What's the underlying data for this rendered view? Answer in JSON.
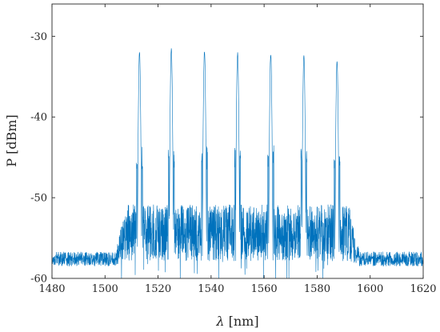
{
  "chart_data": {
    "type": "line",
    "title": "",
    "xlabel": "λ [nm]",
    "ylabel": "P [dBm]",
    "xlim": [
      1480,
      1620
    ],
    "ylim": [
      -60,
      -26
    ],
    "xticks": [
      1480,
      1500,
      1520,
      1540,
      1560,
      1580,
      1600,
      1620
    ],
    "yticks": [
      -60,
      -50,
      -40,
      -30
    ],
    "grid": false,
    "legend": "none",
    "line_color": "#0072BD",
    "noise_floor_dbm": -57.5,
    "peak_region_noise_floor_dbm": -54,
    "peak_region_nm": [
      1508,
      1592
    ],
    "series": [
      {
        "x": [
          1513,
          1525,
          1537.5,
          1550,
          1562.5,
          1575,
          1587.5
        ],
        "values": [
          -31,
          -30.6,
          -30.8,
          -31.1,
          -31.2,
          -31.5,
          -32.1
        ]
      }
    ]
  },
  "xtick_labels": [
    "1480",
    "1500",
    "1520",
    "1540",
    "1560",
    "1580",
    "1600",
    "1620"
  ],
  "ytick_labels": [
    "-60",
    "-50",
    "-40",
    "-30"
  ],
  "labels": {
    "ylabel": "P [dBm]",
    "xlabel_symbol": "λ",
    "xlabel_unit": " [nm]"
  }
}
